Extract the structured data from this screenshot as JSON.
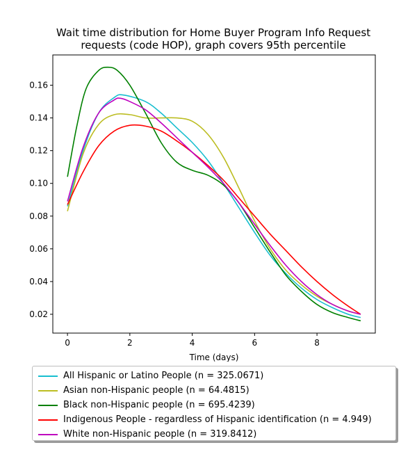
{
  "chart_data": {
    "type": "line",
    "title_lines": [
      "Wait time distribution  for Home Buyer Program Info Request",
      "requests (code HOP), graph covers 95th percentile"
    ],
    "xlabel": "Time (days)",
    "ylabel": "",
    "xlim": [
      -0.47,
      9.87
    ],
    "ylim": [
      0.0085,
      0.1785
    ],
    "x_ticks": [
      0,
      2,
      4,
      6,
      8
    ],
    "y_ticks": [
      0.02,
      0.04,
      0.06,
      0.08,
      0.1,
      0.12,
      0.14,
      0.16
    ],
    "y_tick_labels": [
      "0.02",
      "0.04",
      "0.06",
      "0.08",
      "0.10",
      "0.12",
      "0.14",
      "0.16"
    ],
    "grid": false,
    "legend_placement": "below",
    "series": [
      {
        "name": "All Hispanic or Latino People (n = 325.0671)",
        "color": "#17becf",
        "x": [
          0,
          0.5,
          1,
          1.5,
          1.8,
          2.5,
          3,
          3.5,
          4,
          4.5,
          5,
          5.5,
          6,
          6.5,
          7,
          7.5,
          8,
          8.5,
          9,
          9.4
        ],
        "y": [
          0.086,
          0.12,
          0.143,
          0.1525,
          0.154,
          0.15,
          0.143,
          0.134,
          0.125,
          0.114,
          0.1,
          0.085,
          0.07,
          0.056,
          0.045,
          0.036,
          0.029,
          0.024,
          0.02,
          0.018
        ]
      },
      {
        "name": "Asian non-Hispanic people (n = 64.4815)",
        "color": "#bcbd22",
        "x": [
          0,
          0.5,
          1,
          1.5,
          2,
          2.5,
          3,
          3.5,
          4,
          4.5,
          5,
          5.5,
          6,
          6.5,
          7,
          7.5,
          8,
          8.5,
          9,
          9.4
        ],
        "y": [
          0.083,
          0.118,
          0.136,
          0.142,
          0.142,
          0.14,
          0.14,
          0.14,
          0.138,
          0.13,
          0.116,
          0.097,
          0.077,
          0.06,
          0.047,
          0.038,
          0.031,
          0.026,
          0.022,
          0.02
        ]
      },
      {
        "name": "Black non-Hispanic people (n = 695.4239)",
        "color": "#008000",
        "x": [
          0,
          0.3,
          0.6,
          1.0,
          1.3,
          1.6,
          2.0,
          2.5,
          3.0,
          3.5,
          4.0,
          4.5,
          5.0,
          5.5,
          6.0,
          6.5,
          7.0,
          7.5,
          8.0,
          8.5,
          9.0,
          9.4
        ],
        "y": [
          0.104,
          0.135,
          0.158,
          0.169,
          0.171,
          0.169,
          0.16,
          0.143,
          0.125,
          0.113,
          0.108,
          0.105,
          0.099,
          0.088,
          0.073,
          0.058,
          0.044,
          0.034,
          0.026,
          0.021,
          0.018,
          0.016
        ]
      },
      {
        "name": "Indigenous People - regardless of Hispanic identification (n = 4.949)",
        "color": "#ff0000",
        "x": [
          0,
          0.5,
          1,
          1.5,
          2,
          2.5,
          3,
          3.5,
          4,
          4.5,
          5,
          5.5,
          6,
          6.5,
          7,
          7.5,
          8,
          8.5,
          9,
          9.4
        ],
        "y": [
          0.087,
          0.107,
          0.123,
          0.132,
          0.1355,
          0.135,
          0.132,
          0.126,
          0.119,
          0.111,
          0.102,
          0.091,
          0.08,
          0.069,
          0.059,
          0.049,
          0.04,
          0.032,
          0.025,
          0.02
        ]
      },
      {
        "name": "White non-Hispanic people (n = 319.8412)",
        "color": "#bf00bf",
        "x": [
          0,
          0.5,
          1,
          1.5,
          1.7,
          2.0,
          2.5,
          3,
          3.5,
          4,
          4.5,
          5,
          5.5,
          6,
          6.5,
          7,
          7.5,
          8,
          8.5,
          9,
          9.4
        ],
        "y": [
          0.089,
          0.122,
          0.143,
          0.151,
          0.152,
          0.15,
          0.145,
          0.137,
          0.128,
          0.119,
          0.11,
          0.1,
          0.088,
          0.075,
          0.062,
          0.05,
          0.04,
          0.032,
          0.026,
          0.022,
          0.02
        ]
      }
    ]
  }
}
